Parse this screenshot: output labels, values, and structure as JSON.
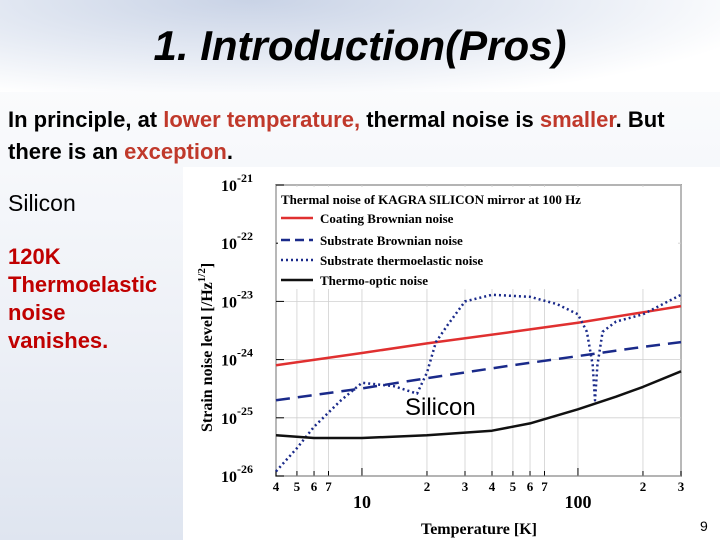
{
  "slide": {
    "title": "1.  Introduction(Pros)",
    "intro": {
      "p1": "In principle, at ",
      "p2": "lower temperature,",
      "p3": " thermal noise is ",
      "p4": "smaller",
      "p5": ".  But there is an ",
      "p6": "exception",
      "p7": "."
    },
    "silicon_label": "Silicon",
    "note_lines": [
      "120K",
      "Thermoelastic",
      "noise",
      "vanishes."
    ],
    "chart_overlay_label": "Silicon",
    "slide_number": "9"
  },
  "colors": {
    "highlight": "#c0392b",
    "note": "#c00000"
  },
  "chart_data": {
    "type": "line",
    "title": "Thermal noise of KAGRA SILICON mirror at 100 Hz",
    "xlabel": "Temperature [K]",
    "ylabel": "Strain noise level [/Hz",
    "ylabel_exp": "1/2",
    "ylabel_close": "]",
    "xscale": "log",
    "yscale": "log",
    "xlim": [
      4,
      300
    ],
    "ylim": [
      1e-26,
      1e-21
    ],
    "grid": true,
    "legend_position": "top",
    "y_ticks": [
      {
        "value": 1e-21,
        "base": "10",
        "exp": "-21"
      },
      {
        "value": 1e-22,
        "base": "10",
        "exp": "-22"
      },
      {
        "value": 1e-23,
        "base": "10",
        "exp": "-23"
      },
      {
        "value": 1e-24,
        "base": "10",
        "exp": "-24"
      },
      {
        "value": 1e-25,
        "base": "10",
        "exp": "-25"
      },
      {
        "value": 1e-26,
        "base": "10",
        "exp": "-26"
      }
    ],
    "x_ticks": [
      {
        "value": 4,
        "label": "4",
        "major": false
      },
      {
        "value": 5,
        "label": "5",
        "major": false
      },
      {
        "value": 6,
        "label": "6",
        "major": false
      },
      {
        "value": 7,
        "label": "7",
        "major": false
      },
      {
        "value": 10,
        "label": "10",
        "major": true
      },
      {
        "value": 20,
        "label": "2",
        "major": false
      },
      {
        "value": 30,
        "label": "3",
        "major": false
      },
      {
        "value": 40,
        "label": "4",
        "major": false
      },
      {
        "value": 50,
        "label": "5",
        "major": false
      },
      {
        "value": 60,
        "label": "6",
        "major": false
      },
      {
        "value": 70,
        "label": "7",
        "major": false
      },
      {
        "value": 100,
        "label": "100",
        "major": true
      },
      {
        "value": 200,
        "label": "2",
        "major": false
      },
      {
        "value": 300,
        "label": "3",
        "major": false
      }
    ],
    "series": [
      {
        "name": "Coating Brownian noise",
        "color": "#e03030",
        "dash": "solid",
        "x": [
          4,
          10,
          20,
          50,
          100,
          200,
          300
        ],
        "y": [
          8e-25,
          1.3e-24,
          1.9e-24,
          3e-24,
          4.3e-24,
          6.5e-24,
          8.3e-24
        ]
      },
      {
        "name": "Substrate Brownian noise",
        "color": "#1a2a8a",
        "dash": "dashed",
        "x": [
          4,
          10,
          20,
          50,
          100,
          200,
          300
        ],
        "y": [
          2e-25,
          3.2e-25,
          4.8e-25,
          8e-25,
          1.15e-24,
          1.65e-24,
          2e-24
        ]
      },
      {
        "name": "Substrate thermoelastic noise",
        "color": "#1a2a8a",
        "dash": "dotted",
        "x": [
          4,
          5,
          6,
          8,
          10,
          14,
          18,
          20,
          22,
          25,
          30,
          40,
          60,
          80,
          100,
          110,
          117,
          120,
          123,
          130,
          150,
          200,
          300
        ],
        "y": [
          1.2e-26,
          3e-26,
          7e-26,
          2e-25,
          4e-25,
          3.5e-25,
          2.6e-25,
          6e-25,
          2e-24,
          4e-24,
          1e-23,
          1.3e-23,
          1.2e-23,
          9e-24,
          6e-24,
          3e-24,
          8e-25,
          2e-25,
          8e-25,
          3e-24,
          4.5e-24,
          6e-24,
          1.3e-23
        ]
      },
      {
        "name": "Thermo-optic noise",
        "color": "#111111",
        "dash": "solid",
        "x": [
          4,
          6,
          10,
          20,
          40,
          60,
          100,
          150,
          200,
          300
        ],
        "y": [
          5e-26,
          4.5e-26,
          4.5e-26,
          5e-26,
          6e-26,
          8e-26,
          1.4e-25,
          2.3e-25,
          3.4e-25,
          6.3e-25
        ]
      }
    ]
  }
}
